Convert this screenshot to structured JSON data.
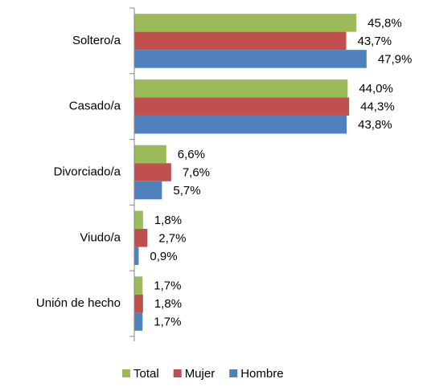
{
  "chart_data": {
    "type": "hbar",
    "categories": [
      "Soltero/a",
      "Casado/a",
      "Divorciado/a",
      "Viudo/a",
      "Unión de hecho"
    ],
    "series": [
      {
        "name": "Total",
        "color": "#9bbb59",
        "values": [
          45.8,
          44.0,
          6.6,
          1.8,
          1.7
        ],
        "value_labels": [
          "45,8%",
          "44,0%",
          "6,6%",
          "1,8%",
          "1,7%"
        ]
      },
      {
        "name": "Mujer",
        "color": "#c0504d",
        "values": [
          43.7,
          44.3,
          7.6,
          2.7,
          1.8
        ],
        "value_labels": [
          "43,7%",
          "44,3%",
          "7,6%",
          "2,7%",
          "1,8%"
        ]
      },
      {
        "name": "Hombre",
        "color": "#4f81bd",
        "values": [
          47.9,
          43.8,
          5.7,
          0.9,
          1.7
        ],
        "value_labels": [
          "47,9%",
          "43,8%",
          "5,7%",
          "0,9%",
          "1,7%"
        ]
      }
    ],
    "legend": "bottom"
  }
}
